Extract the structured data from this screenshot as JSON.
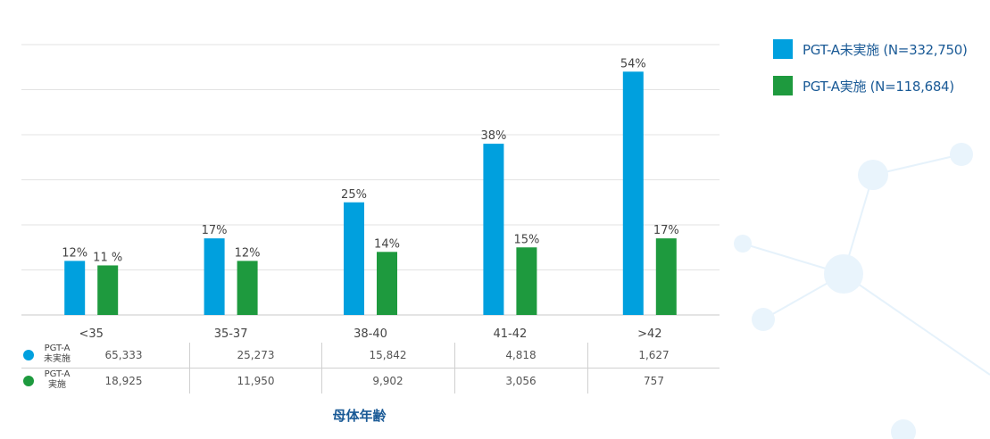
{
  "chart_data": {
    "type": "bar",
    "categories": [
      "<35",
      "35-37",
      "38-40",
      "41-42",
      ">42"
    ],
    "series": [
      {
        "name": "PGT-A未実施 (N=332,750)",
        "values": [
          12,
          17,
          25,
          38,
          54
        ],
        "labels": [
          "12%",
          "17%",
          "25%",
          "38%",
          "54%"
        ],
        "color": "#00a0de"
      },
      {
        "name": "PGT-A実施 (N=118,684)",
        "values": [
          11,
          12,
          14,
          15,
          17
        ],
        "labels": [
          "11 %",
          "12%",
          "14%",
          "15%",
          "17%"
        ],
        "color": "#1e9a3e"
      }
    ],
    "xlabel": "母体年齢",
    "ylim": [
      0,
      60
    ],
    "grid": true,
    "legend_position": "top-right"
  },
  "table": {
    "rows": [
      {
        "label_lines": [
          "PGT-A",
          "未実施"
        ],
        "color": "#00a0de",
        "values": [
          "65,333",
          "25,273",
          "15,842",
          "4,818",
          "1,627"
        ]
      },
      {
        "label_lines": [
          "PGT-A",
          "実施"
        ],
        "color": "#1e9a3e",
        "values": [
          "18,925",
          "11,950",
          "9,902",
          "3,056",
          "757"
        ]
      }
    ]
  }
}
